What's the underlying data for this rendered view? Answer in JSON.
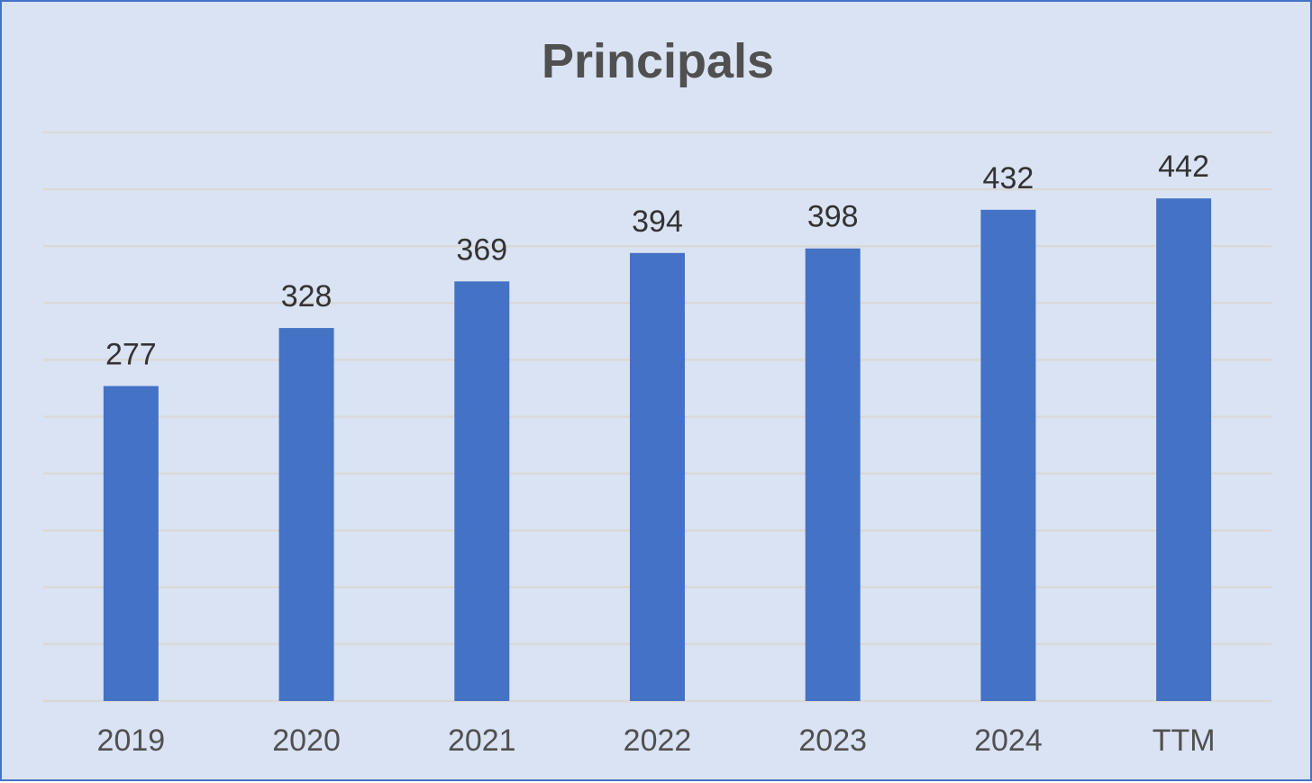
{
  "chart_data": {
    "type": "bar",
    "title": "Principals",
    "categories": [
      "2019",
      "2020",
      "2021",
      "2022",
      "2023",
      "2024",
      "TTM"
    ],
    "values": [
      277,
      328,
      369,
      394,
      398,
      432,
      442
    ],
    "xlabel": "",
    "ylabel": "",
    "ylim": [
      0,
      500
    ],
    "grid": true,
    "legend": "none",
    "show_data_labels": true,
    "show_y_tick_labels": false,
    "colors": {
      "bar": "#4472c4",
      "background": "#dae3f3",
      "border": "#4472c4",
      "gridline": "#d9d9d9",
      "axis": "#d9d9d9"
    }
  }
}
